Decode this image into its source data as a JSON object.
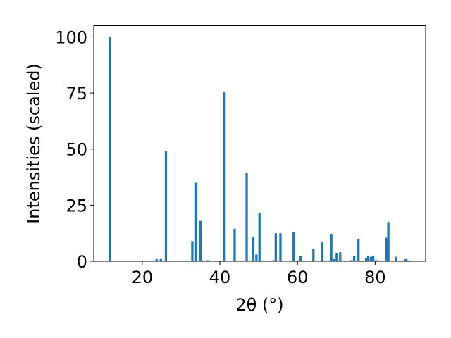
{
  "chart_data": {
    "type": "bar",
    "xlabel": "2θ (°)",
    "ylabel": "Intensities (scaled)",
    "xlim": [
      7.5,
      93
    ],
    "ylim": [
      0,
      105
    ],
    "xticks": [
      20,
      40,
      60,
      80
    ],
    "yticks": [
      0,
      25,
      50,
      75,
      100
    ],
    "bar_color": "#1f77b4",
    "bar_width": 0.6,
    "bars": [
      {
        "x": 11.7,
        "y": 100
      },
      {
        "x": 23.7,
        "y": 1
      },
      {
        "x": 24.8,
        "y": 1
      },
      {
        "x": 26.1,
        "y": 49
      },
      {
        "x": 32.9,
        "y": 9
      },
      {
        "x": 33.9,
        "y": 35
      },
      {
        "x": 35.0,
        "y": 18
      },
      {
        "x": 36.9,
        "y": 0.5
      },
      {
        "x": 41.2,
        "y": 75.5
      },
      {
        "x": 43.8,
        "y": 14.5
      },
      {
        "x": 46.9,
        "y": 39.5
      },
      {
        "x": 48.6,
        "y": 11
      },
      {
        "x": 49.4,
        "y": 3
      },
      {
        "x": 50.2,
        "y": 21.5
      },
      {
        "x": 53.9,
        "y": 0.5
      },
      {
        "x": 54.4,
        "y": 12.5
      },
      {
        "x": 55.6,
        "y": 12.5
      },
      {
        "x": 59.0,
        "y": 13
      },
      {
        "x": 60.8,
        "y": 2.5
      },
      {
        "x": 64.1,
        "y": 5.5
      },
      {
        "x": 66.4,
        "y": 8.5
      },
      {
        "x": 68.7,
        "y": 12
      },
      {
        "x": 69.4,
        "y": 1
      },
      {
        "x": 70.1,
        "y": 3.5
      },
      {
        "x": 71.0,
        "y": 4
      },
      {
        "x": 73.9,
        "y": 0.5
      },
      {
        "x": 74.6,
        "y": 2.5
      },
      {
        "x": 75.7,
        "y": 10
      },
      {
        "x": 77.7,
        "y": 1.5
      },
      {
        "x": 78.2,
        "y": 2.5
      },
      {
        "x": 78.9,
        "y": 2
      },
      {
        "x": 79.5,
        "y": 2.5
      },
      {
        "x": 80.3,
        "y": 0.5
      },
      {
        "x": 82.9,
        "y": 10.5
      },
      {
        "x": 83.4,
        "y": 17.5
      },
      {
        "x": 85.4,
        "y": 2
      },
      {
        "x": 87.8,
        "y": 1
      },
      {
        "x": 88.3,
        "y": 0.5
      }
    ]
  }
}
